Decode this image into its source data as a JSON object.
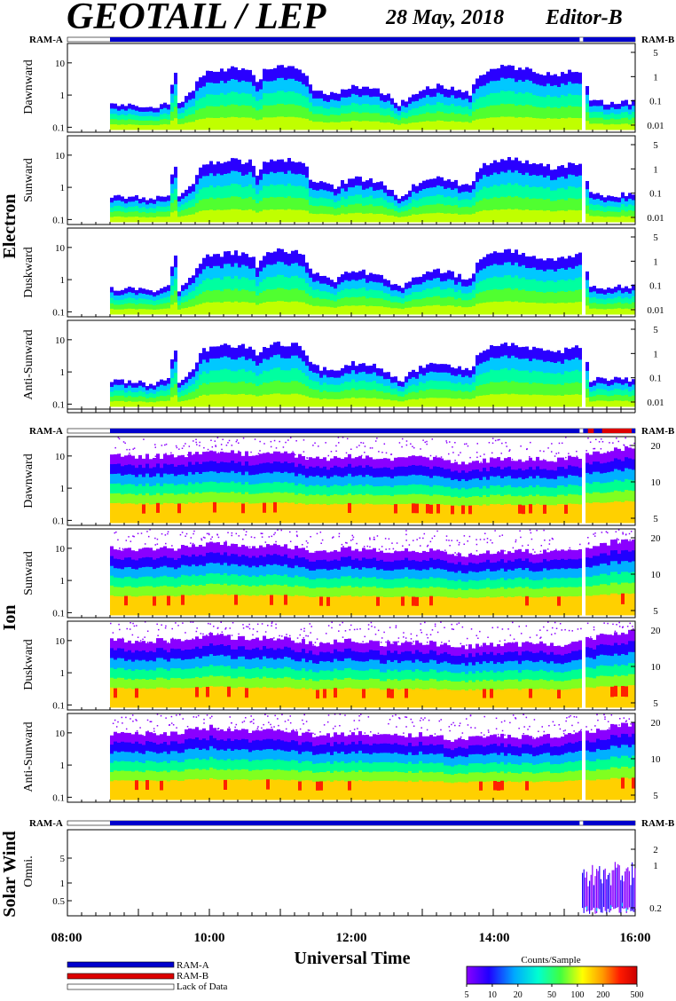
{
  "header": {
    "title": "GEOTAIL / LEP",
    "date": "28 May, 2018",
    "editor": "Editor-B"
  },
  "status_bar_labels": {
    "left": "RAM-A",
    "right": "RAM-B"
  },
  "groups": [
    {
      "id": "electron",
      "label": "Electron"
    },
    {
      "id": "ion",
      "label": "Ion"
    },
    {
      "id": "solarwind",
      "label": "Solar Wind"
    }
  ],
  "electron_panels": {
    "left_ticks": [
      "10",
      "1",
      "0.1"
    ],
    "right_ticks": [
      "5",
      "1",
      "0.1",
      "0.01"
    ],
    "labels": [
      "Dawnward",
      "Sunward",
      "Duskward",
      "Anti-Sunward"
    ]
  },
  "ion_panels": {
    "left_ticks": [
      "10",
      "1",
      "0.1"
    ],
    "right_ticks": [
      "20",
      "10",
      "5"
    ],
    "labels": [
      "Dawnward",
      "Sunward",
      "Duskward",
      "Anti-Sunward"
    ]
  },
  "solarwind_panel": {
    "label": "Omni.",
    "left_ticks": [
      "5",
      "1",
      "0.5"
    ],
    "right_ticks": [
      "2",
      "1",
      "0.2"
    ]
  },
  "x_axis": {
    "label": "Universal Time",
    "tick_labels": [
      "08:00",
      "10:00",
      "12:00",
      "14:00",
      "16:00"
    ]
  },
  "legend": {
    "items": [
      {
        "label": "RAM-A",
        "color": "#0000cc"
      },
      {
        "label": "RAM-B",
        "color": "#dd0000"
      },
      {
        "label": "Lack of Data",
        "color": "#ffffff"
      }
    ]
  },
  "colorbar": {
    "title": "Counts/Sample",
    "tick_labels": [
      "5",
      "10",
      "20",
      "50",
      "100",
      "200",
      "500"
    ],
    "colors": [
      "#8a00ff",
      "#2000ff",
      "#00a8ff",
      "#00ffd0",
      "#40ff40",
      "#ffff00",
      "#ff9900",
      "#ff1a00",
      "#cc0000"
    ]
  },
  "chart_data": {
    "type": "heatmap",
    "title": "GEOTAIL / LEP",
    "xlabel": "Universal Time",
    "xlim": [
      "08:00",
      "16:00"
    ],
    "x_ticks": [
      "08:00",
      "10:00",
      "12:00",
      "14:00",
      "16:00"
    ],
    "data_start": "08:36",
    "data_gap": [
      "15:13",
      "15:16"
    ],
    "colorscale": {
      "label": "Counts/Sample",
      "min": 5,
      "max": 500,
      "scale": "log"
    },
    "electron_envelope_top": [
      [
        "08:36",
        0.5
      ],
      [
        "08:55",
        0.55
      ],
      [
        "09:10",
        0.4
      ],
      [
        "09:25",
        0.6
      ],
      [
        "09:30",
        5
      ],
      [
        "09:33",
        0.5
      ],
      [
        "09:45",
        1.2
      ],
      [
        "09:55",
        5
      ],
      [
        "10:05",
        6
      ],
      [
        "10:20",
        7
      ],
      [
        "10:35",
        6
      ],
      [
        "10:40",
        2
      ],
      [
        "10:45",
        6
      ],
      [
        "10:55",
        8
      ],
      [
        "11:15",
        7
      ],
      [
        "11:25",
        1.5
      ],
      [
        "11:45",
        1
      ],
      [
        "12:00",
        2
      ],
      [
        "12:20",
        1.5
      ],
      [
        "12:40",
        0.5
      ],
      [
        "13:10",
        2
      ],
      [
        "13:40",
        1
      ],
      [
        "13:50",
        5
      ],
      [
        "14:10",
        8
      ],
      [
        "14:30",
        6
      ],
      [
        "14:50",
        4
      ],
      [
        "15:12",
        6
      ],
      [
        "15:20",
        0.6
      ],
      [
        "16:00",
        0.6
      ]
    ],
    "ion_envelope_top": [
      [
        "08:36",
        10
      ],
      [
        "09:30",
        10
      ],
      [
        "10:00",
        15
      ],
      [
        "10:30",
        12
      ],
      [
        "11:00",
        12
      ],
      [
        "11:30",
        8
      ],
      [
        "12:00",
        10
      ],
      [
        "12:30",
        8
      ],
      [
        "13:00",
        9
      ],
      [
        "13:30",
        6
      ],
      [
        "14:00",
        8
      ],
      [
        "15:00",
        8
      ],
      [
        "15:12",
        10
      ],
      [
        "16:00",
        20
      ]
    ],
    "ion_peak_hotspots": [
      "12:00",
      "13:15",
      "15:35"
    ],
    "solarwind_active": [
      "15:15",
      "16:00"
    ],
    "status_bar_segments": [
      {
        "start": "08:00",
        "end": "08:36",
        "state": "Lack of Data"
      },
      {
        "start": "08:36",
        "end": "15:13",
        "state": "RAM-A"
      },
      {
        "start": "15:13",
        "end": "15:16",
        "state": "Lack of Data"
      },
      {
        "start": "15:16",
        "end": "16:00",
        "state": "RAM-A"
      }
    ],
    "ion_status_red_segments": [
      [
        "15:20",
        "15:25"
      ],
      [
        "15:32",
        "15:57"
      ]
    ]
  }
}
